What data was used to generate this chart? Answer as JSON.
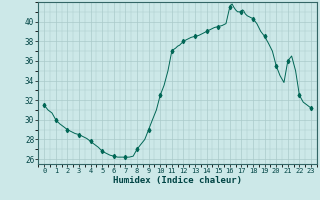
{
  "xlabel": "Humidex (Indice chaleur)",
  "ylabel": "",
  "bg_color": "#cce8e8",
  "grid_color": "#aacaca",
  "line_color": "#006655",
  "marker_color": "#006655",
  "ylim": [
    25.5,
    42.0
  ],
  "xlim": [
    -0.5,
    23.5
  ],
  "yticks": [
    26,
    28,
    30,
    32,
    34,
    36,
    38,
    40
  ],
  "xticks": [
    0,
    1,
    2,
    3,
    4,
    5,
    6,
    7,
    8,
    9,
    10,
    11,
    12,
    13,
    14,
    15,
    16,
    17,
    18,
    19,
    20,
    21,
    22,
    23
  ],
  "x": [
    0,
    0.33,
    0.67,
    1,
    1.33,
    1.67,
    2,
    2.33,
    2.67,
    3,
    3.33,
    3.67,
    4,
    4.33,
    4.67,
    5,
    5.33,
    5.67,
    6,
    6.33,
    6.67,
    7,
    7.33,
    7.67,
    8,
    8.33,
    8.67,
    9,
    9.33,
    9.67,
    10,
    10.33,
    10.67,
    11,
    11.2,
    11.33,
    11.5,
    11.67,
    12,
    12.33,
    12.67,
    13,
    13.33,
    13.67,
    14,
    14.33,
    14.67,
    15,
    15.33,
    15.67,
    16,
    16.1,
    16.2,
    16.33,
    16.5,
    16.67,
    17,
    17.1,
    17.2,
    17.33,
    17.5,
    17.67,
    18,
    18.33,
    18.67,
    19,
    19.33,
    19.67,
    20,
    20.33,
    20.67,
    21,
    21.33,
    21.67,
    22,
    22.33,
    22.67,
    23
  ],
  "y": [
    31.5,
    31.0,
    30.7,
    30.0,
    29.6,
    29.3,
    29.0,
    28.8,
    28.6,
    28.5,
    28.3,
    28.1,
    27.8,
    27.5,
    27.2,
    26.8,
    26.6,
    26.4,
    26.3,
    26.2,
    26.2,
    26.2,
    26.2,
    26.3,
    27.0,
    27.5,
    28.0,
    29.0,
    30.0,
    31.0,
    32.5,
    33.5,
    35.0,
    37.0,
    37.2,
    37.3,
    37.5,
    37.6,
    38.0,
    38.2,
    38.4,
    38.5,
    38.6,
    38.8,
    39.0,
    39.2,
    39.4,
    39.5,
    39.6,
    39.8,
    41.5,
    41.7,
    41.8,
    41.5,
    41.2,
    41.0,
    41.0,
    41.2,
    41.1,
    40.8,
    40.6,
    40.5,
    40.3,
    39.8,
    39.0,
    38.5,
    37.8,
    37.0,
    35.5,
    34.5,
    33.8,
    36.0,
    36.5,
    35.0,
    32.5,
    31.8,
    31.5,
    31.2
  ],
  "marker_x": [
    0,
    1,
    2,
    3,
    4,
    5,
    6,
    7,
    8,
    9,
    10,
    11,
    12,
    13,
    14,
    15,
    16,
    17,
    18,
    19,
    20,
    21,
    22,
    23
  ],
  "marker_y": [
    31.5,
    30.0,
    29.0,
    28.5,
    27.8,
    26.8,
    26.3,
    26.2,
    27.0,
    29.0,
    32.5,
    37.0,
    38.0,
    38.5,
    39.0,
    39.5,
    41.5,
    41.0,
    40.3,
    38.5,
    35.5,
    36.0,
    32.5,
    31.2
  ]
}
